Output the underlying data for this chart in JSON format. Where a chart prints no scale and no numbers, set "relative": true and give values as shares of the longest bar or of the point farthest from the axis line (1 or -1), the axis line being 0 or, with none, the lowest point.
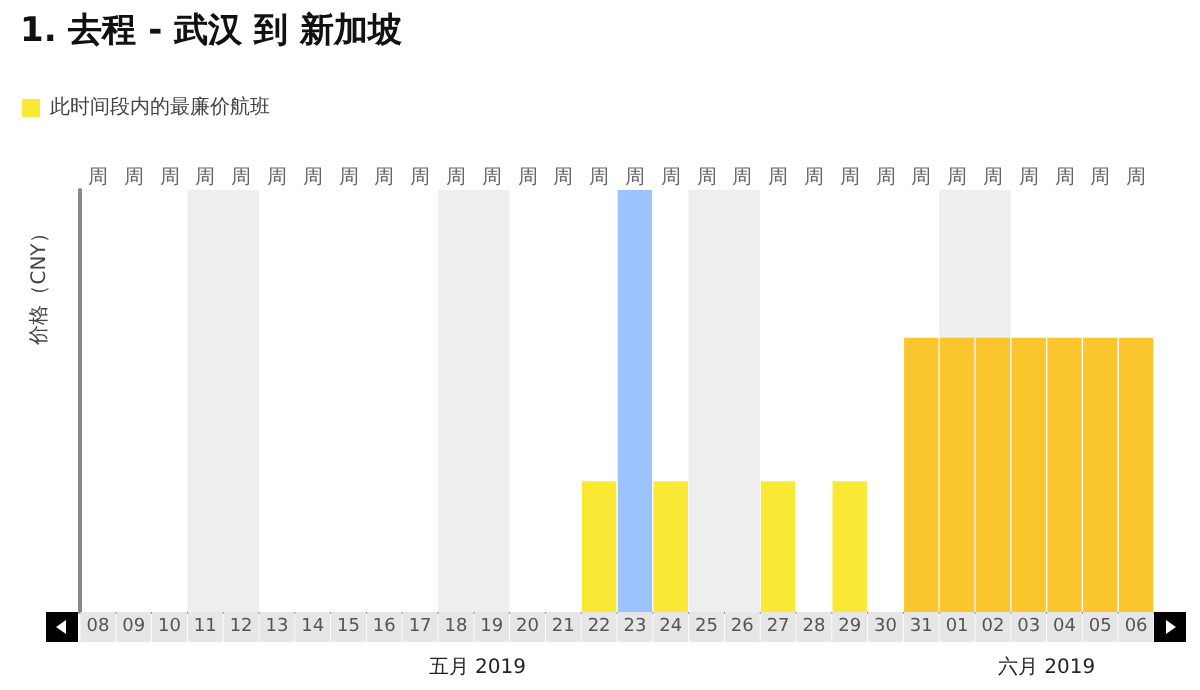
{
  "chart_data": {
    "type": "bar",
    "title": "1. 去程 - 武汉 到 新加坡",
    "ylabel": "价格（CNY）",
    "relative": true,
    "categories": [
      "08",
      "09",
      "10",
      "11",
      "12",
      "13",
      "14",
      "15",
      "16",
      "17",
      "18",
      "19",
      "20",
      "21",
      "22",
      "23",
      "24",
      "25",
      "26",
      "27",
      "28",
      "29",
      "30",
      "31",
      "01",
      "02",
      "03",
      "04",
      "05",
      "06"
    ],
    "series": [
      {
        "name": "此时间段内的最廉价航班",
        "color": "#f9e934",
        "values": [
          null,
          null,
          null,
          null,
          null,
          null,
          null,
          null,
          null,
          null,
          null,
          null,
          null,
          null,
          0.31,
          1,
          0.31,
          null,
          null,
          0.31,
          null,
          0.31,
          null,
          0.65,
          0.65,
          0.65,
          0.65,
          0.65,
          0.65,
          0.65
        ],
        "colors": [
          "#f9e934",
          "#f9e934",
          "#f9e934",
          "#f9e934",
          "#f9e934",
          "#f9e934",
          "#f9e934",
          "#f9e934",
          "#f9e934",
          "#f9e934",
          "#f9e934",
          "#f9e934",
          "#f9e934",
          "#f9e934",
          "#f9e934",
          "#9cc3fb",
          "#f9e934",
          "#f9e934",
          "#f9e934",
          "#f9e934",
          "#f9e934",
          "#f9e934",
          "#f9e934",
          "#fbc52e",
          "#fbc52e",
          "#fbc52e",
          "#fbc52e",
          "#fbc52e",
          "#fbc52e",
          "#fbc52e"
        ]
      }
    ],
    "bands": [
      {
        "axis": "x",
        "from": "11",
        "to": "12",
        "color": "#eeeeee"
      },
      {
        "axis": "x",
        "from": "18",
        "to": "19",
        "color": "#eeeeee"
      },
      {
        "axis": "x",
        "from": "25",
        "to": "26",
        "color": "#eeeeee"
      },
      {
        "axis": "x",
        "from": "01",
        "to": "02",
        "color": "#eeeeee"
      }
    ],
    "annotations": [
      "周",
      "周",
      "周",
      "周",
      "周",
      "周",
      "周",
      "周",
      "周",
      "周",
      "周",
      "周",
      "周",
      "周",
      "周",
      "周",
      "周",
      "周",
      "周",
      "周",
      "周",
      "周",
      "周",
      "周",
      "周",
      "周",
      "周",
      "周",
      "周",
      "周",
      "五月 2019",
      "六月 2019"
    ],
    "legend": "top left",
    "grid": false
  }
}
